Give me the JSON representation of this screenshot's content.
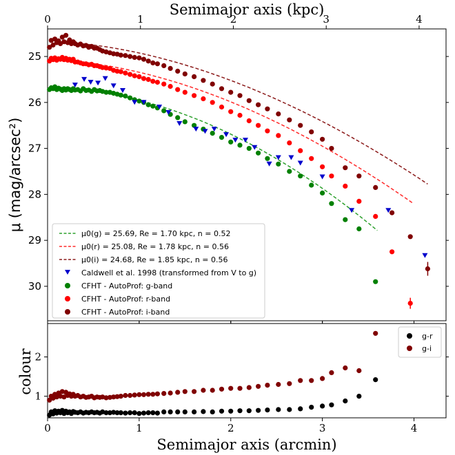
{
  "chart_data": [
    {
      "type": "scatter",
      "title": "",
      "xlabel_top": "Semimajor axis (kpc)",
      "xlim_top": [
        0,
        4.2
      ],
      "xticks_top": [
        "0",
        "1",
        "2",
        "3",
        "4"
      ],
      "xlabel": "Semimajor axis (arcmin)",
      "xlim": [
        0,
        4.35
      ],
      "ylabel": "μ (mag/arcsec²)",
      "ylim": [
        30.75,
        24.4
      ],
      "y_inverted": true,
      "yticks": [
        "25",
        "26",
        "27",
        "28",
        "29",
        "30"
      ],
      "legend_position": "lower-left",
      "legend": {
        "fit_g": "μ0(g) = 25.69, Re = 1.70 kpc, n = 0.52",
        "fit_r": "μ0(r) = 25.08, Re = 1.78 kpc, n = 0.56",
        "fit_i": "μ0(i) = 24.68, Re = 1.85 kpc, n = 0.56",
        "caldwell": "Caldwell et al. 1998 (transformed from V to g)",
        "g_band": "CFHT - AutoProf: g-band",
        "r_band": "CFHT - AutoProf: r-band",
        "i_band": "CFHT - AutoProf: i-band"
      },
      "series": [
        {
          "name": "CFHT - AutoProf: g-band",
          "color": "#008000",
          "x": [
            0.02,
            0.04,
            0.06,
            0.08,
            0.1,
            0.12,
            0.14,
            0.16,
            0.18,
            0.2,
            0.22,
            0.24,
            0.26,
            0.28,
            0.3,
            0.33,
            0.36,
            0.39,
            0.42,
            0.45,
            0.48,
            0.51,
            0.54,
            0.57,
            0.6,
            0.64,
            0.68,
            0.72,
            0.76,
            0.8,
            0.85,
            0.9,
            0.95,
            1.0,
            1.05,
            1.1,
            1.15,
            1.2,
            1.27,
            1.34,
            1.42,
            1.5,
            1.6,
            1.7,
            1.8,
            1.9,
            2.0,
            2.1,
            2.2,
            2.3,
            2.4,
            2.52,
            2.64,
            2.76,
            2.88,
            3.0,
            3.1,
            3.25,
            3.4,
            3.58
          ],
          "y": [
            25.72,
            25.68,
            25.7,
            25.66,
            25.72,
            25.69,
            25.71,
            25.74,
            25.7,
            25.73,
            25.7,
            25.72,
            25.74,
            25.7,
            25.73,
            25.72,
            25.75,
            25.7,
            25.74,
            25.73,
            25.76,
            25.72,
            25.75,
            25.74,
            25.76,
            25.78,
            25.78,
            25.8,
            25.82,
            25.84,
            25.86,
            25.9,
            25.94,
            25.97,
            26.0,
            26.05,
            26.08,
            26.12,
            26.18,
            26.26,
            26.33,
            26.42,
            26.5,
            26.58,
            26.67,
            26.76,
            26.86,
            26.93,
            27.0,
            27.1,
            27.22,
            27.34,
            27.5,
            27.6,
            27.8,
            27.97,
            28.2,
            28.55,
            28.75,
            29.9
          ],
          "error_last": 0.0
        },
        {
          "name": "CFHT - AutoProf: r-band",
          "color": "#ff0000",
          "x": [
            0.02,
            0.04,
            0.06,
            0.08,
            0.1,
            0.12,
            0.14,
            0.16,
            0.18,
            0.2,
            0.22,
            0.24,
            0.26,
            0.28,
            0.3,
            0.33,
            0.36,
            0.39,
            0.42,
            0.45,
            0.48,
            0.51,
            0.54,
            0.57,
            0.6,
            0.64,
            0.68,
            0.72,
            0.76,
            0.8,
            0.85,
            0.9,
            0.95,
            1.0,
            1.05,
            1.1,
            1.15,
            1.2,
            1.27,
            1.34,
            1.42,
            1.5,
            1.6,
            1.7,
            1.8,
            1.9,
            2.0,
            2.1,
            2.2,
            2.3,
            2.4,
            2.52,
            2.64,
            2.76,
            2.88,
            3.0,
            3.1,
            3.25,
            3.4,
            3.58,
            3.76,
            3.96
          ],
          "y": [
            25.1,
            25.04,
            25.07,
            25.03,
            25.08,
            25.05,
            25.06,
            25.02,
            25.07,
            25.04,
            25.08,
            25.06,
            25.09,
            25.06,
            25.12,
            25.12,
            25.14,
            25.16,
            25.16,
            25.18,
            25.17,
            25.2,
            25.2,
            25.22,
            25.24,
            25.25,
            25.26,
            25.3,
            25.32,
            25.33,
            25.36,
            25.39,
            25.42,
            25.44,
            25.48,
            25.5,
            25.54,
            25.56,
            25.6,
            25.65,
            25.72,
            25.78,
            25.85,
            25.92,
            26.0,
            26.1,
            26.2,
            26.28,
            26.4,
            26.5,
            26.62,
            26.72,
            26.88,
            27.05,
            27.22,
            27.4,
            27.6,
            27.82,
            28.15,
            28.48,
            29.25,
            30.37
          ],
          "error_last": 0.12
        },
        {
          "name": "CFHT - AutoProf: i-band",
          "color": "#800000",
          "x": [
            0.02,
            0.04,
            0.06,
            0.08,
            0.1,
            0.12,
            0.14,
            0.16,
            0.18,
            0.2,
            0.22,
            0.24,
            0.26,
            0.28,
            0.3,
            0.33,
            0.36,
            0.39,
            0.42,
            0.45,
            0.48,
            0.51,
            0.54,
            0.57,
            0.6,
            0.64,
            0.68,
            0.72,
            0.76,
            0.8,
            0.85,
            0.9,
            0.95,
            1.0,
            1.05,
            1.1,
            1.15,
            1.2,
            1.27,
            1.34,
            1.42,
            1.5,
            1.6,
            1.7,
            1.8,
            1.9,
            2.0,
            2.1,
            2.2,
            2.3,
            2.4,
            2.52,
            2.64,
            2.76,
            2.88,
            3.0,
            3.1,
            3.25,
            3.4,
            3.58,
            3.76,
            3.96,
            4.15
          ],
          "y": [
            24.8,
            24.65,
            24.75,
            24.62,
            24.7,
            24.66,
            24.72,
            24.58,
            24.68,
            24.54,
            24.7,
            24.64,
            24.72,
            24.68,
            24.72,
            24.75,
            24.73,
            24.77,
            24.76,
            24.8,
            24.78,
            24.82,
            24.82,
            24.85,
            24.88,
            24.9,
            24.92,
            24.94,
            24.95,
            24.97,
            24.98,
            25.0,
            25.02,
            25.03,
            25.06,
            25.1,
            25.14,
            25.16,
            25.2,
            25.26,
            25.32,
            25.38,
            25.44,
            25.52,
            25.6,
            25.7,
            25.78,
            25.85,
            25.96,
            26.05,
            26.14,
            26.25,
            26.38,
            26.5,
            26.64,
            26.8,
            27.0,
            27.42,
            27.6,
            27.85,
            28.4,
            28.92,
            29.62
          ],
          "error_last": 0.15
        },
        {
          "name": "Caldwell et al. 1998 (transformed from V to g)",
          "color": "#0000cc",
          "x": [
            0.3,
            0.4,
            0.47,
            0.55,
            0.63,
            0.72,
            0.82,
            0.95,
            1.05,
            1.22,
            1.32,
            1.44,
            1.62,
            1.72,
            1.82,
            1.95,
            2.05,
            2.16,
            2.26,
            2.42,
            2.52,
            2.66,
            2.76,
            3.0,
            3.32,
            3.72,
            4.12
          ],
          "y": [
            25.62,
            25.5,
            25.56,
            25.58,
            25.48,
            25.64,
            25.74,
            26.0,
            26.0,
            26.1,
            26.22,
            26.46,
            26.58,
            26.63,
            26.58,
            26.7,
            26.82,
            26.82,
            26.98,
            27.34,
            27.2,
            27.2,
            27.32,
            27.62,
            28.35,
            28.35,
            29.33
          ]
        }
      ],
      "fits": [
        {
          "name": "μ0(g) = 25.69, Re = 1.70 kpc, n = 0.52",
          "color": "#2ca02c",
          "mu0": 25.69,
          "re_arcmin": 1.76,
          "n": 0.52,
          "x_end": 3.6
        },
        {
          "name": "μ0(r) = 25.08, Re = 1.78 kpc, n = 0.56",
          "color": "#ff2a2a",
          "mu0": 25.08,
          "re_arcmin": 1.84,
          "n": 0.56,
          "x_end": 3.98
        },
        {
          "name": "μ0(i) = 24.68, Re = 1.85 kpc, n = 0.56",
          "color": "#8b1a1a",
          "mu0": 24.68,
          "re_arcmin": 1.92,
          "n": 0.56,
          "x_end": 4.15
        }
      ]
    },
    {
      "type": "scatter",
      "xlabel": "Semimajor axis (arcmin)",
      "xticks": [
        "0",
        "1",
        "2",
        "3",
        "4"
      ],
      "xlim": [
        0,
        4.35
      ],
      "ylabel": "colour",
      "ylim": [
        0.45,
        2.85
      ],
      "yticks": [
        "1",
        "2"
      ],
      "legend_position": "top-right",
      "legend": {
        "gr": "g-r",
        "gi": "g-i"
      },
      "series": [
        {
          "name": "g-r",
          "color": "#000000",
          "x": [
            0.02,
            0.04,
            0.06,
            0.08,
            0.1,
            0.12,
            0.14,
            0.16,
            0.18,
            0.2,
            0.22,
            0.24,
            0.26,
            0.28,
            0.3,
            0.33,
            0.36,
            0.39,
            0.42,
            0.45,
            0.48,
            0.51,
            0.54,
            0.57,
            0.6,
            0.64,
            0.68,
            0.72,
            0.76,
            0.8,
            0.85,
            0.9,
            0.95,
            1.0,
            1.05,
            1.1,
            1.15,
            1.2,
            1.27,
            1.34,
            1.42,
            1.5,
            1.6,
            1.7,
            1.8,
            1.9,
            2.0,
            2.1,
            2.2,
            2.3,
            2.4,
            2.52,
            2.64,
            2.76,
            2.88,
            3.0,
            3.1,
            3.25,
            3.4,
            3.58
          ],
          "y": [
            0.52,
            0.6,
            0.55,
            0.63,
            0.57,
            0.62,
            0.58,
            0.64,
            0.56,
            0.62,
            0.58,
            0.6,
            0.56,
            0.61,
            0.59,
            0.58,
            0.6,
            0.57,
            0.59,
            0.58,
            0.6,
            0.58,
            0.59,
            0.57,
            0.6,
            0.58,
            0.58,
            0.59,
            0.58,
            0.58,
            0.57,
            0.58,
            0.58,
            0.56,
            0.57,
            0.58,
            0.58,
            0.57,
            0.6,
            0.6,
            0.6,
            0.6,
            0.6,
            0.61,
            0.6,
            0.62,
            0.62,
            0.63,
            0.63,
            0.64,
            0.65,
            0.66,
            0.66,
            0.68,
            0.72,
            0.75,
            0.78,
            0.88,
            1.0,
            1.42
          ]
        },
        {
          "name": "g-i",
          "color": "#800000",
          "x": [
            0.02,
            0.04,
            0.06,
            0.08,
            0.1,
            0.12,
            0.14,
            0.16,
            0.18,
            0.2,
            0.22,
            0.24,
            0.26,
            0.28,
            0.3,
            0.33,
            0.36,
            0.39,
            0.42,
            0.45,
            0.48,
            0.51,
            0.54,
            0.57,
            0.6,
            0.64,
            0.68,
            0.72,
            0.76,
            0.8,
            0.85,
            0.9,
            0.95,
            1.0,
            1.05,
            1.1,
            1.15,
            1.2,
            1.27,
            1.34,
            1.42,
            1.5,
            1.6,
            1.7,
            1.8,
            1.9,
            2.0,
            2.1,
            2.2,
            2.3,
            2.4,
            2.52,
            2.64,
            2.76,
            2.88,
            3.0,
            3.1,
            3.25,
            3.4,
            3.58
          ],
          "y": [
            0.9,
            1.0,
            0.95,
            1.05,
            0.98,
            1.08,
            1.0,
            1.12,
            0.98,
            1.1,
            1.02,
            1.06,
            1.0,
            1.05,
            1.0,
            1.02,
            0.98,
            1.0,
            0.97,
            0.98,
            1.0,
            0.96,
            0.98,
            0.97,
            0.98,
            0.96,
            0.97,
            0.98,
            0.99,
            1.0,
            1.02,
            1.02,
            1.03,
            1.04,
            1.04,
            1.05,
            1.05,
            1.06,
            1.07,
            1.08,
            1.1,
            1.12,
            1.12,
            1.15,
            1.15,
            1.18,
            1.2,
            1.2,
            1.22,
            1.25,
            1.28,
            1.3,
            1.32,
            1.4,
            1.4,
            1.45,
            1.6,
            1.72,
            1.65,
            2.6
          ]
        }
      ]
    }
  ]
}
